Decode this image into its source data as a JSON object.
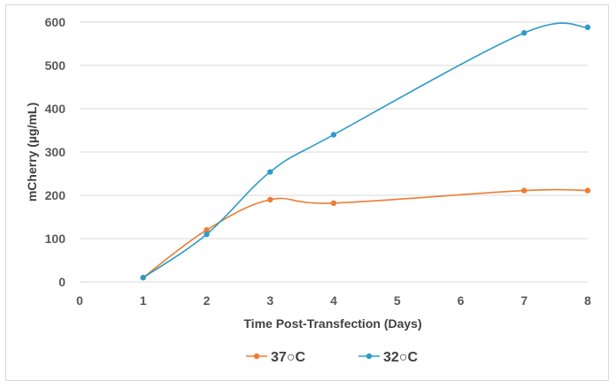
{
  "chart_data": {
    "type": "line",
    "title": "",
    "xlabel": "Time Post-Transfection (Days)",
    "ylabel": "mCherry (µg/mL)",
    "xlim": [
      0,
      8
    ],
    "ylim": [
      0,
      600
    ],
    "xticks": [
      0,
      1,
      2,
      3,
      4,
      5,
      6,
      7,
      8
    ],
    "yticks": [
      0,
      100,
      200,
      300,
      400,
      500,
      600
    ],
    "grid": "horizontal",
    "legend_position": "bottom",
    "smoothed": true,
    "series": [
      {
        "name": "37○C",
        "color": "#ed7d31",
        "points": [
          [
            1,
            10
          ],
          [
            2,
            120
          ],
          [
            3,
            190
          ],
          [
            4,
            182
          ],
          [
            7,
            211
          ],
          [
            8,
            211
          ]
        ]
      },
      {
        "name": "32○C",
        "color": "#2e9bc8",
        "points": [
          [
            1,
            10
          ],
          [
            2,
            110
          ],
          [
            3,
            254
          ],
          [
            4,
            340
          ],
          [
            7,
            575
          ],
          [
            8,
            588
          ]
        ]
      }
    ]
  }
}
